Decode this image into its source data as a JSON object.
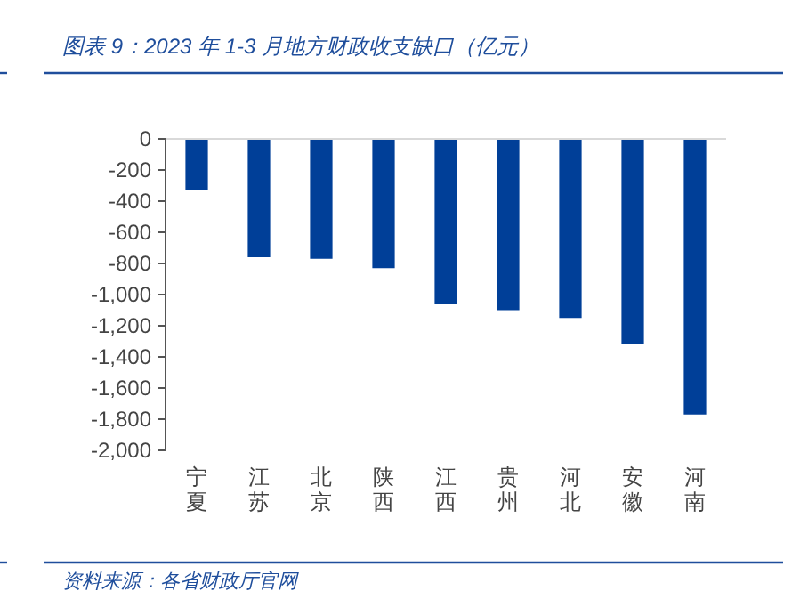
{
  "chart_data": {
    "type": "bar",
    "title": "图表 9：2023 年 1-3 月地方财政收支缺口（亿元）",
    "categories": [
      "宁夏",
      "江苏",
      "北京",
      "陕西",
      "江西",
      "贵州",
      "河北",
      "安徽",
      "河南"
    ],
    "values": [
      -330,
      -760,
      -770,
      -830,
      -1060,
      -1100,
      -1150,
      -1320,
      -1770
    ],
    "color": "#003f98",
    "ylim": [
      -2000,
      0
    ],
    "yticks": [
      {
        "value": 0,
        "label": "0"
      },
      {
        "value": -200,
        "label": "-200"
      },
      {
        "value": -400,
        "label": "-400"
      },
      {
        "value": -600,
        "label": "-600"
      },
      {
        "value": -800,
        "label": "-800"
      },
      {
        "value": -1000,
        "label": "-1,000"
      },
      {
        "value": -1200,
        "label": "-1,200"
      },
      {
        "value": -1400,
        "label": "-1,400"
      },
      {
        "value": -1600,
        "label": "-1,600"
      },
      {
        "value": -1800,
        "label": "-1,800"
      },
      {
        "value": -2000,
        "label": "-2,000"
      }
    ],
    "grid": false,
    "annotations": [
      "资料来源：各省财政厅官网"
    ]
  }
}
